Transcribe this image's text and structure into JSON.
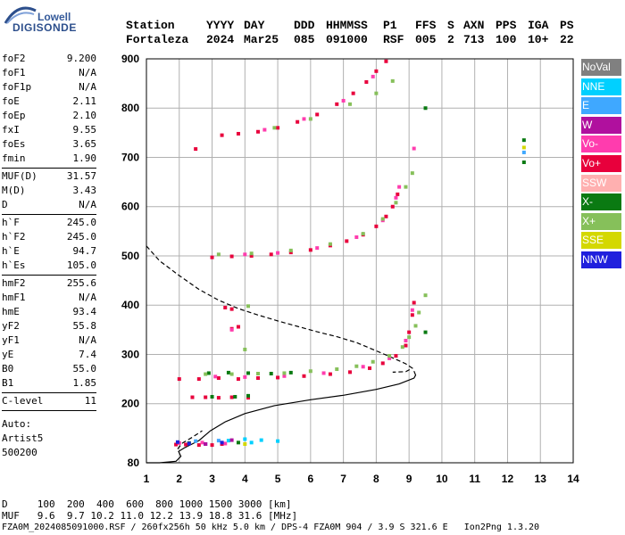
{
  "logo": {
    "top": "Lowell",
    "bottom": "DIGISONDE"
  },
  "header": {
    "labels": [
      "Station",
      "YYYY",
      "DAY",
      "DDD",
      "HHMMSS",
      "P1",
      "FFS",
      "S",
      "AXN",
      "PPS",
      "IGA",
      "PS"
    ],
    "values": [
      "Fortaleza",
      "2024",
      "Mar25",
      "085",
      "091000",
      "RSF",
      "005",
      "2",
      "713",
      "100",
      "10+",
      "22"
    ]
  },
  "params": {
    "group1": [
      {
        "name": "foF2",
        "value": "9.200"
      },
      {
        "name": "foF1",
        "value": "N/A"
      },
      {
        "name": "foF1p",
        "value": "N/A"
      },
      {
        "name": "foE",
        "value": "2.11"
      },
      {
        "name": "foEp",
        "value": "2.10"
      },
      {
        "name": "fxI",
        "value": "9.55"
      },
      {
        "name": "foEs",
        "value": "3.65"
      },
      {
        "name": "fmin",
        "value": "1.90"
      }
    ],
    "group2": [
      {
        "name": "MUF(D)",
        "value": "31.57"
      },
      {
        "name": "M(D)",
        "value": "3.43"
      },
      {
        "name": "D",
        "value": "N/A"
      }
    ],
    "group3": [
      {
        "name": "h`F",
        "value": "245.0"
      },
      {
        "name": "h`F2",
        "value": "245.0"
      },
      {
        "name": "h`E",
        "value": "94.7"
      },
      {
        "name": "h`Es",
        "value": "105.0"
      }
    ],
    "group4": [
      {
        "name": "hmF2",
        "value": "255.6"
      },
      {
        "name": "hmF1",
        "value": "N/A"
      },
      {
        "name": "hmE",
        "value": "93.4"
      },
      {
        "name": "yF2",
        "value": "55.8"
      },
      {
        "name": "yF1",
        "value": "N/A"
      },
      {
        "name": "yE",
        "value": "7.4"
      },
      {
        "name": "B0",
        "value": "55.0"
      },
      {
        "name": "B1",
        "value": "1.85"
      }
    ],
    "group5": [
      {
        "name": "C-level",
        "value": "11"
      }
    ],
    "auto": [
      "Auto:",
      "Artist5",
      "500200"
    ]
  },
  "legend": [
    {
      "label": "NoVal",
      "color": "#808080"
    },
    {
      "label": "NNE",
      "color": "#00d0ff"
    },
    {
      "label": "E",
      "color": "#3fa8ff"
    },
    {
      "label": "W",
      "color": "#b0109e"
    },
    {
      "label": "Vo-",
      "color": "#ff3cae"
    },
    {
      "label": "Vo+",
      "color": "#e8003c"
    },
    {
      "label": "SSW",
      "color": "#ffb0b0"
    },
    {
      "label": "X-",
      "color": "#0a7a12"
    },
    {
      "label": "X+",
      "color": "#86c05a"
    },
    {
      "label": "SSE",
      "color": "#d4d800"
    },
    {
      "label": "NNW",
      "color": "#2020dd"
    }
  ],
  "footer": {
    "line1": "D     100  200  400  600  800 1000 1500 3000 [km]",
    "line2": "MUF   9.6  9.7 10.2 11.0 12.2 13.9 18.8 31.6 [MHz]",
    "line3": "FZA0M_2024085091000.RSF / 260fx256h 50 kHz 5.0 km / DPS-4 FZA0M 904 / 3.9 S 321.6 E   Ion2Png 1.3.20"
  },
  "chart_data": {
    "type": "scatter",
    "xlim": [
      1,
      14
    ],
    "ylim": [
      80,
      900
    ],
    "x_ticks": [
      1,
      2,
      3,
      4,
      5,
      6,
      7,
      8,
      9,
      10,
      11,
      12,
      13,
      14
    ],
    "y_ticks": [
      80,
      200,
      300,
      400,
      500,
      600,
      700,
      800,
      900
    ],
    "grid": true,
    "series": [
      {
        "name": "Vo+",
        "color": "#e8003c",
        "points": [
          [
            1.9,
            117
          ],
          [
            2.2,
            117
          ],
          [
            2.6,
            116
          ],
          [
            3.0,
            116
          ],
          [
            3.3,
            118
          ],
          [
            2.4,
            213
          ],
          [
            2.8,
            213
          ],
          [
            3.2,
            212
          ],
          [
            3.6,
            213
          ],
          [
            4.1,
            212
          ],
          [
            2.0,
            250
          ],
          [
            2.6,
            250
          ],
          [
            3.2,
            252
          ],
          [
            3.8,
            250
          ],
          [
            4.4,
            252
          ],
          [
            5.0,
            253
          ],
          [
            5.8,
            256
          ],
          [
            6.6,
            260
          ],
          [
            7.2,
            264
          ],
          [
            7.8,
            272
          ],
          [
            8.2,
            282
          ],
          [
            8.6,
            297
          ],
          [
            8.9,
            318
          ],
          [
            9.0,
            345
          ],
          [
            9.1,
            380
          ],
          [
            9.15,
            405
          ],
          [
            3.0,
            497
          ],
          [
            3.6,
            499
          ],
          [
            4.2,
            500
          ],
          [
            4.8,
            503
          ],
          [
            5.4,
            507
          ],
          [
            6.0,
            512
          ],
          [
            6.6,
            521
          ],
          [
            7.1,
            530
          ],
          [
            7.6,
            543
          ],
          [
            8.0,
            560
          ],
          [
            8.3,
            580
          ],
          [
            8.5,
            600
          ],
          [
            8.65,
            625
          ],
          [
            3.4,
            395
          ],
          [
            3.6,
            392
          ],
          [
            3.6,
            352
          ],
          [
            3.8,
            356
          ],
          [
            3.3,
            745
          ],
          [
            3.8,
            748
          ],
          [
            4.4,
            752
          ],
          [
            5.0,
            760
          ],
          [
            5.6,
            772
          ],
          [
            6.2,
            787
          ],
          [
            6.8,
            808
          ],
          [
            7.3,
            830
          ],
          [
            7.7,
            853
          ],
          [
            8.0,
            875
          ],
          [
            8.3,
            895
          ],
          [
            2.5,
            717
          ]
        ]
      },
      {
        "name": "Vo-",
        "color": "#ff3cae",
        "points": [
          [
            2.0,
            120
          ],
          [
            2.7,
            121
          ],
          [
            3.4,
            119
          ],
          [
            3.1,
            255
          ],
          [
            4.0,
            254
          ],
          [
            5.2,
            256
          ],
          [
            6.4,
            262
          ],
          [
            7.6,
            275
          ],
          [
            8.4,
            292
          ],
          [
            8.9,
            328
          ],
          [
            9.1,
            390
          ],
          [
            4.0,
            503
          ],
          [
            5.0,
            506
          ],
          [
            6.2,
            516
          ],
          [
            7.4,
            538
          ],
          [
            8.2,
            572
          ],
          [
            8.6,
            618
          ],
          [
            8.7,
            640
          ],
          [
            3.6,
            350
          ],
          [
            9.15,
            718
          ],
          [
            4.6,
            756
          ],
          [
            5.8,
            778
          ],
          [
            7.0,
            815
          ],
          [
            7.9,
            864
          ]
        ]
      },
      {
        "name": "X-",
        "color": "#0a7a12",
        "points": [
          [
            2.9,
            262
          ],
          [
            3.5,
            263
          ],
          [
            4.1,
            262
          ],
          [
            4.8,
            261
          ],
          [
            5.4,
            263
          ],
          [
            3.0,
            214
          ],
          [
            3.7,
            214
          ],
          [
            4.1,
            216
          ],
          [
            2.3,
            120
          ],
          [
            3.8,
            121
          ],
          [
            9.5,
            345
          ],
          [
            9.5,
            800
          ],
          [
            12.5,
            690
          ],
          [
            12.5,
            735
          ]
        ]
      },
      {
        "name": "X+",
        "color": "#86c05a",
        "points": [
          [
            2.8,
            260
          ],
          [
            3.6,
            260
          ],
          [
            4.4,
            261
          ],
          [
            5.2,
            262
          ],
          [
            6.0,
            266
          ],
          [
            6.8,
            270
          ],
          [
            7.4,
            276
          ],
          [
            7.9,
            285
          ],
          [
            8.4,
            297
          ],
          [
            8.8,
            315
          ],
          [
            9.0,
            335
          ],
          [
            9.2,
            358
          ],
          [
            9.3,
            385
          ],
          [
            9.5,
            420
          ],
          [
            3.2,
            503
          ],
          [
            4.2,
            505
          ],
          [
            5.4,
            511
          ],
          [
            6.6,
            524
          ],
          [
            7.6,
            545
          ],
          [
            8.2,
            575
          ],
          [
            8.6,
            608
          ],
          [
            8.9,
            640
          ],
          [
            9.1,
            668
          ],
          [
            4.0,
            310
          ],
          [
            4.1,
            398
          ],
          [
            4.9,
            760
          ],
          [
            6.0,
            778
          ],
          [
            7.2,
            808
          ],
          [
            8.0,
            830
          ],
          [
            8.5,
            855
          ]
        ]
      },
      {
        "name": "NNE",
        "color": "#00d0ff",
        "points": [
          [
            3.5,
            125
          ],
          [
            4.0,
            128
          ],
          [
            4.5,
            126
          ],
          [
            5.0,
            124
          ],
          [
            4.2,
            121
          ]
        ]
      },
      {
        "name": "E",
        "color": "#3fa8ff",
        "points": [
          [
            2.5,
            124
          ],
          [
            3.2,
            125
          ],
          [
            12.5,
            710
          ]
        ]
      },
      {
        "name": "NNW",
        "color": "#2020dd",
        "points": [
          [
            1.95,
            122
          ],
          [
            2.3,
            119
          ],
          [
            2.8,
            118
          ],
          [
            3.3,
            121
          ]
        ]
      },
      {
        "name": "W",
        "color": "#b0109e",
        "points": [
          [
            2.8,
            118
          ],
          [
            3.6,
            126
          ]
        ]
      },
      {
        "name": "SSE",
        "color": "#d4d800",
        "points": [
          [
            12.5,
            720
          ],
          [
            4.0,
            118
          ]
        ]
      }
    ],
    "lines": [
      {
        "name": "profile",
        "style": "solid",
        "points": [
          [
            1,
            80
          ],
          [
            1.4,
            80
          ],
          [
            1.9,
            83
          ],
          [
            2.05,
            93
          ],
          [
            1.98,
            103
          ],
          [
            2.15,
            110
          ],
          [
            2.6,
            125
          ],
          [
            2.95,
            145
          ],
          [
            3.4,
            163
          ],
          [
            4.0,
            180
          ],
          [
            4.9,
            196
          ],
          [
            6.0,
            208
          ],
          [
            7.0,
            217
          ],
          [
            8.0,
            229
          ],
          [
            8.7,
            240
          ],
          [
            9.15,
            252
          ],
          [
            9.2,
            258
          ],
          [
            9.15,
            266
          ]
        ]
      },
      {
        "name": "model",
        "style": "dashed",
        "points": [
          [
            1,
            520
          ],
          [
            1.4,
            490
          ],
          [
            2.0,
            460
          ],
          [
            2.6,
            432
          ],
          [
            3.2,
            410
          ],
          [
            3.8,
            393
          ],
          [
            4.4,
            380
          ],
          [
            5.0,
            368
          ],
          [
            5.6,
            357
          ],
          [
            6.2,
            346
          ],
          [
            6.8,
            336
          ],
          [
            7.4,
            324
          ],
          [
            7.9,
            310
          ],
          [
            8.4,
            296
          ],
          [
            8.9,
            281
          ],
          [
            9.1,
            272
          ],
          [
            8.9,
            265
          ],
          [
            8.5,
            264
          ]
        ]
      },
      {
        "name": "e-layer",
        "style": "dashed",
        "points": [
          [
            1.95,
            108
          ],
          [
            2.1,
            120
          ],
          [
            2.4,
            132
          ],
          [
            2.7,
            145
          ]
        ]
      }
    ]
  }
}
